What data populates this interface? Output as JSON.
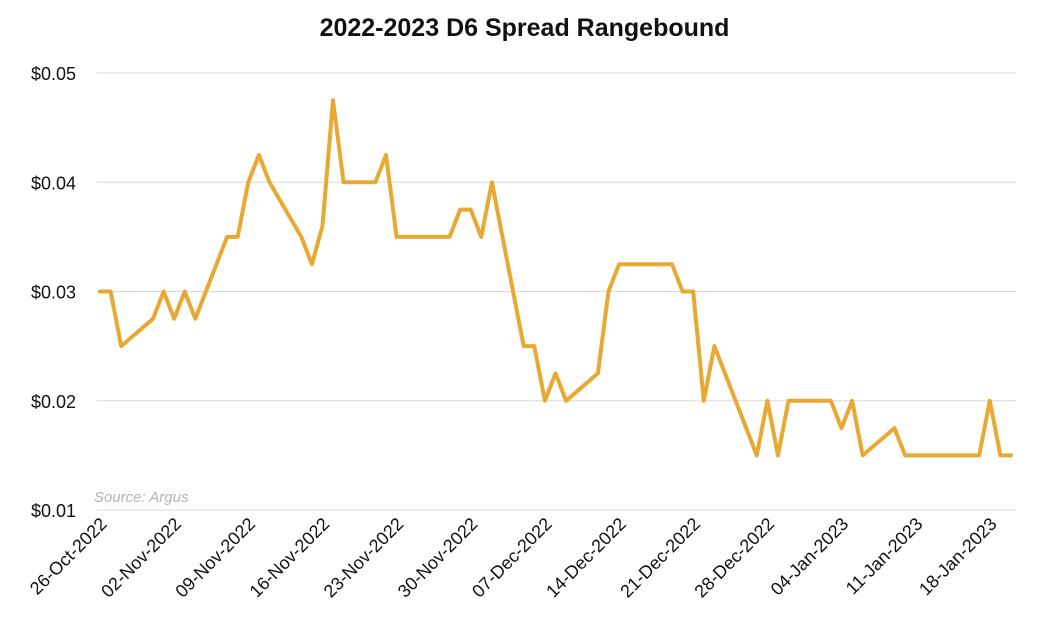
{
  "chart_data": {
    "type": "line",
    "title": "2022-2023 D6 Spread Rangebound",
    "source": "Source: Argus",
    "xlabel": "",
    "ylabel": "",
    "ylim": [
      0.01,
      0.05
    ],
    "y_ticks": [
      "$0.01",
      "$0.02",
      "$0.03",
      "$0.04",
      "$0.05"
    ],
    "y_tick_values": [
      0.01,
      0.02,
      0.03,
      0.04,
      0.05
    ],
    "x_tick_labels": [
      "26-Oct-2022",
      "02-Nov-2022",
      "09-Nov-2022",
      "16-Nov-2022",
      "23-Nov-2022",
      "30-Nov-2022",
      "07-Dec-2022",
      "14-Dec-2022",
      "21-Dec-2022",
      "28-Dec-2022",
      "04-Jan-2023",
      "11-Jan-2023",
      "18-Jan-2023"
    ],
    "grid": true,
    "line_color": "#E8A832",
    "series": [
      {
        "x": [
          "2022-10-26",
          "2022-10-27",
          "2022-10-28",
          "2022-10-31",
          "2022-11-01",
          "2022-11-02",
          "2022-11-03",
          "2022-11-04",
          "2022-11-07",
          "2022-11-08",
          "2022-11-09",
          "2022-11-10",
          "2022-11-11",
          "2022-11-14",
          "2022-11-15",
          "2022-11-16",
          "2022-11-17",
          "2022-11-18",
          "2022-11-21",
          "2022-11-22",
          "2022-11-23",
          "2022-11-24",
          "2022-11-25",
          "2022-11-28",
          "2022-11-29",
          "2022-11-30",
          "2022-12-01",
          "2022-12-02",
          "2022-12-05",
          "2022-12-06",
          "2022-12-07",
          "2022-12-08",
          "2022-12-09",
          "2022-12-12",
          "2022-12-13",
          "2022-12-14",
          "2022-12-15",
          "2022-12-16",
          "2022-12-19",
          "2022-12-20",
          "2022-12-21",
          "2022-12-22",
          "2022-12-23",
          "2022-12-27",
          "2022-12-28",
          "2022-12-29",
          "2022-12-30",
          "2023-01-03",
          "2023-01-04",
          "2023-01-05",
          "2023-01-06",
          "2023-01-09",
          "2023-01-10",
          "2023-01-11",
          "2023-01-12",
          "2023-01-13",
          "2023-01-17",
          "2023-01-18",
          "2023-01-19",
          "2023-01-20"
        ],
        "values": [
          0.03,
          0.03,
          0.025,
          0.0275,
          0.03,
          0.0275,
          0.03,
          0.0275,
          0.035,
          0.035,
          0.04,
          0.0425,
          0.04,
          0.035,
          0.0325,
          0.036,
          0.0475,
          0.04,
          0.04,
          0.0425,
          0.035,
          0.035,
          0.035,
          0.035,
          0.0375,
          0.0375,
          0.035,
          0.04,
          0.025,
          0.025,
          0.02,
          0.0225,
          0.02,
          0.0225,
          0.03,
          0.0325,
          0.0325,
          0.0325,
          0.0325,
          0.03,
          0.03,
          0.02,
          0.025,
          0.015,
          0.02,
          0.015,
          0.02,
          0.02,
          0.0175,
          0.02,
          0.015,
          0.0175,
          0.015,
          0.015,
          0.015,
          0.015,
          0.015,
          0.02,
          0.015,
          0.015
        ]
      }
    ]
  }
}
